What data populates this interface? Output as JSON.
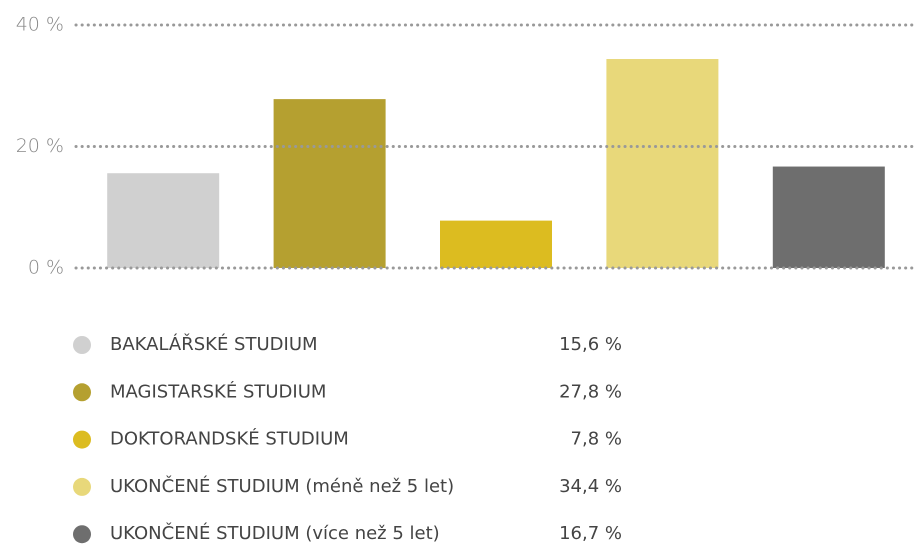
{
  "chart_data": {
    "type": "bar",
    "categories": [
      "BAKALÁŘSKÉ STUDIUM",
      "MAGISTARSKÉ STUDIUM",
      "DOKTORANDSKÉ STUDIUM",
      "UKONČENÉ STUDIUM (méně než 5 let)",
      "UKONČENÉ STUDIUM (více než 5 let)"
    ],
    "values": [
      15.6,
      27.8,
      7.8,
      34.4,
      16.7
    ],
    "value_labels": [
      "15,6 %",
      "27,8 %",
      "7,8 %",
      "34,4 %",
      "16,7 %"
    ],
    "colors": [
      "#d0d0d0",
      "#b5a030",
      "#dcbc20",
      "#e8d87a",
      "#6e6e6e"
    ],
    "ylim": [
      0,
      40
    ],
    "yticks": [
      {
        "value": 0,
        "label": "0 %"
      },
      {
        "value": 20,
        "label": "20 %"
      },
      {
        "value": 40,
        "label": "40 %"
      }
    ],
    "grid": true
  }
}
